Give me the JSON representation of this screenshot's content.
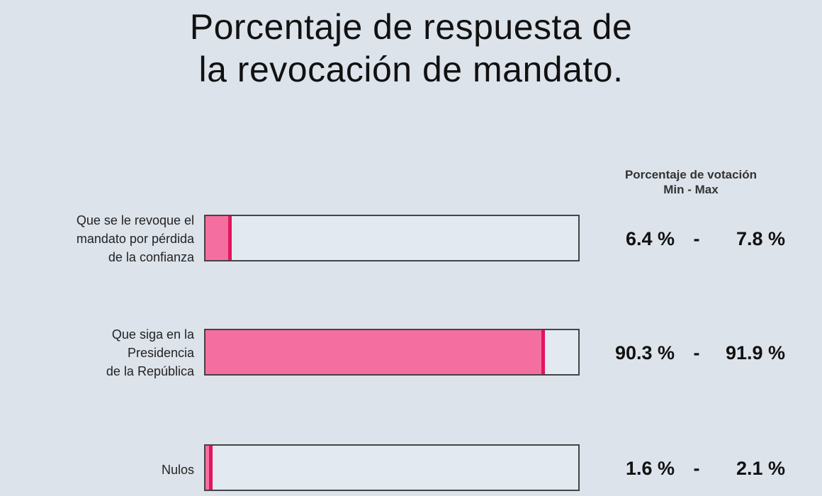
{
  "chart_data": {
    "type": "bar",
    "orientation": "horizontal",
    "title": [
      "Porcentaje de respuesta de",
      "la revocación de mandato."
    ],
    "range_header": [
      "Porcentaje de votación",
      "Min - Max"
    ],
    "xlim": [
      0,
      100
    ],
    "categories": [
      [
        "Que se le revoque el",
        "mandato por pérdida",
        "de la confianza"
      ],
      [
        "Que siga en la",
        "Presidencia",
        "de la República"
      ],
      [
        "Nulos"
      ]
    ],
    "values": [
      7.1,
      91.1,
      1.85
    ],
    "ranges": [
      {
        "min": "6.4 %",
        "sep": "-",
        "max": "7.8 %"
      },
      {
        "min": "90.3 %",
        "sep": "-",
        "max": "91.9 %"
      },
      {
        "min": "1.6 %",
        "sep": "-",
        "max": "2.1 %"
      }
    ],
    "colors": {
      "bar": "#f46f9f",
      "bar_edge": "#e3155e",
      "track": "#e3e9f0",
      "background": "#dde3eb"
    }
  }
}
